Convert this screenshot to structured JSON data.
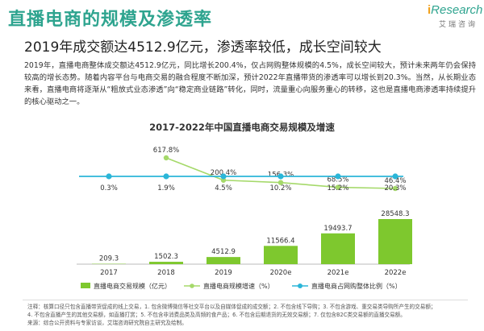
{
  "header": {
    "title": "直播电商的规模及渗透率",
    "brand": "iResearch",
    "brand_sub": "艾瑞咨询",
    "headline": "2019年成交额达4512.9亿元，渗透率较低，成长空间较大",
    "paragraph": "2019年，直播电商整体成交额达4512.9亿元，同比增长200.4%，仅占网购整体规模的4.5%，成长空间较大，预计未来两年仍会保持较高的增长态势。随着内容平台与电商交易的融合程度不断加深，预计2022年直播带货的渗透率可以增长到20.3%。当然，从长期业态来看，直播电商将逐渐从“粗放式业态渗透”向“稳定商业链路”转化，同时，流量重心向服务重心的转移，这也是直播电商渗透率持续提升的核心驱动之一。"
  },
  "chart_data": {
    "type": "bar+line",
    "title": "2017-2022年中国直播电商交易规模及增速",
    "categories": [
      "2017",
      "2018",
      "2019",
      "2020e",
      "2021e",
      "2022e"
    ],
    "series": [
      {
        "name": "直播电商交易规模（亿元）",
        "type": "bar",
        "values": [
          209.3,
          1502.3,
          4512.9,
          11566.4,
          19493.7,
          28548.3
        ],
        "labels": [
          "209.3",
          "1502.3",
          "4512.9",
          "11566.4",
          "19493.7",
          "28548.3"
        ]
      },
      {
        "name": "直播电商规模增速（%）",
        "type": "line",
        "values": [
          null,
          617.8,
          200.4,
          156.3,
          68.5,
          46.4
        ],
        "labels": [
          "",
          "617.8%",
          "200.4%",
          "156.3%",
          "68.5%",
          "46.4%"
        ]
      },
      {
        "name": "直播电商占网购整体比例（%）",
        "type": "line",
        "values": [
          0.3,
          1.9,
          4.5,
          10.2,
          15.2,
          20.3
        ],
        "labels": [
          "0.3%",
          "1.9%",
          "4.5%",
          "10.2%",
          "15.2%",
          "20.3%"
        ]
      }
    ],
    "colors": {
      "bar": "#7ec82e",
      "growth_line": "#a5d96a",
      "share_line": "#2bb6d8",
      "title": "#2ea48f"
    },
    "legend_position": "bottom",
    "grid": false
  },
  "footer": {
    "notes": [
      "注释：核算口径只包含直播带货促成的线上交易，1. 包含微博微信等社交平台以及自媒体促成的成交额；2. 不包含线下导购；3. 不包含游戏、重交易类导购所产生的交易额；",
      "4. 不包含直播产生的其他交易额，如直播打赏；5. 不包含非消费品类及高频的食产品；6. 不包含后期退货的无效交易额；7. 仅包含B2C类交易额的直播交易额。",
      "来源：综合公开资料与专家访谈，艾瑞咨询研究院自主研究及绘制。"
    ]
  }
}
